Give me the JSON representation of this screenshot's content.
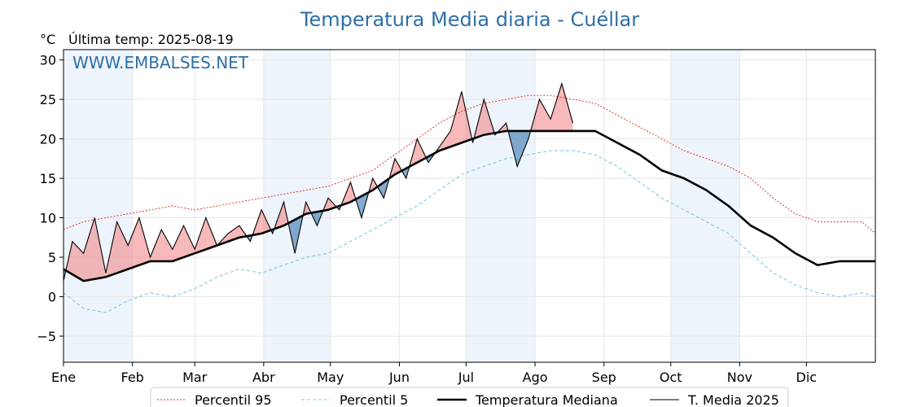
{
  "chart_data": {
    "type": "line",
    "title": "Temperatura Media diaria - Cuéllar",
    "unit_label": "°C",
    "subtitle": "Última temp: 2025-08-19",
    "watermark": "WWW.EMBALSES.NET",
    "ylim": [
      -8.3,
      31.3
    ],
    "yticks": [
      -5,
      0,
      5,
      10,
      15,
      20,
      25,
      30
    ],
    "ytick_labels": [
      "−5",
      "0",
      "5",
      "10",
      "15",
      "20",
      "25",
      "30"
    ],
    "x_axis": "day of year (1 = 1 Jan)",
    "xlim": [
      1,
      366
    ],
    "months": [
      {
        "label": "Ene",
        "start_day": 1
      },
      {
        "label": "Feb",
        "start_day": 32
      },
      {
        "label": "Mar",
        "start_day": 60
      },
      {
        "label": "Abr",
        "start_day": 91
      },
      {
        "label": "May",
        "start_day": 121
      },
      {
        "label": "Jun",
        "start_day": 152
      },
      {
        "label": "Jul",
        "start_day": 182
      },
      {
        "label": "Ago",
        "start_day": 213
      },
      {
        "label": "Sep",
        "start_day": 244
      },
      {
        "label": "Oct",
        "start_day": 274
      },
      {
        "label": "Nov",
        "start_day": 305
      },
      {
        "label": "Dic",
        "start_day": 335
      }
    ],
    "shaded_months": [
      "Ene",
      "Abr",
      "Jul",
      "Oct"
    ],
    "grid": true,
    "legend_position": "bottom",
    "series": [
      {
        "name": "Percentil 95",
        "style": "dotted",
        "color": "#e02020",
        "x": [
          1,
          10,
          20,
          30,
          40,
          50,
          60,
          70,
          80,
          90,
          100,
          110,
          120,
          130,
          140,
          150,
          160,
          170,
          180,
          190,
          200,
          210,
          220,
          230,
          240,
          250,
          260,
          270,
          280,
          290,
          300,
          310,
          320,
          330,
          340,
          350,
          360,
          366
        ],
        "y": [
          8.5,
          9.5,
          10,
          10.5,
          11,
          11.5,
          11,
          11.5,
          12,
          12.5,
          13,
          13.5,
          14,
          15,
          16,
          18,
          20,
          22,
          23.5,
          24.5,
          25,
          25.5,
          25.5,
          25,
          24.5,
          23,
          21.5,
          20,
          18.5,
          17.5,
          16.5,
          15,
          12.5,
          10.5,
          9.5,
          9.5,
          9.5,
          8
        ]
      },
      {
        "name": "Percentil 5",
        "style": "dashed",
        "color": "#7ec8e3",
        "x": [
          1,
          10,
          20,
          30,
          40,
          50,
          60,
          70,
          80,
          90,
          100,
          110,
          120,
          130,
          140,
          150,
          160,
          170,
          180,
          190,
          200,
          210,
          220,
          230,
          240,
          250,
          260,
          270,
          280,
          290,
          300,
          310,
          320,
          330,
          340,
          350,
          360,
          366
        ],
        "y": [
          0.5,
          -1.5,
          -2,
          -0.5,
          0.5,
          0,
          1,
          2.5,
          3.5,
          3,
          4,
          5,
          5.5,
          7,
          8.5,
          10,
          11.5,
          13.5,
          15.5,
          16.5,
          17.5,
          18,
          18.5,
          18.5,
          18,
          16.5,
          14.5,
          12.5,
          11,
          9.5,
          8,
          5.5,
          3,
          1.5,
          0.5,
          0,
          0.5,
          0
        ]
      },
      {
        "name": "Temperatura Mediana",
        "style": "solid-thick",
        "color": "#000000",
        "x": [
          1,
          10,
          20,
          30,
          40,
          50,
          60,
          70,
          80,
          90,
          100,
          110,
          120,
          130,
          140,
          150,
          160,
          170,
          180,
          190,
          200,
          210,
          220,
          230,
          240,
          250,
          260,
          270,
          280,
          290,
          300,
          310,
          320,
          330,
          340,
          350,
          360,
          366
        ],
        "y": [
          3.5,
          2,
          2.5,
          3.5,
          4.5,
          4.5,
          5.5,
          6.5,
          7.5,
          8,
          9,
          10.5,
          11,
          12,
          13.5,
          15.5,
          17,
          18.5,
          19.5,
          20.5,
          21,
          21,
          21,
          21,
          21,
          19.5,
          18,
          16,
          15,
          13.5,
          11.5,
          9,
          7.5,
          5.5,
          4,
          4.5,
          4.5,
          4.5
        ]
      },
      {
        "name": "T. Media 2025",
        "style": "solid-thin",
        "color": "#000000",
        "x": [
          1,
          5,
          10,
          15,
          20,
          25,
          30,
          35,
          40,
          45,
          50,
          55,
          60,
          65,
          70,
          75,
          80,
          85,
          90,
          95,
          100,
          105,
          110,
          115,
          120,
          125,
          130,
          135,
          140,
          145,
          150,
          155,
          160,
          165,
          170,
          175,
          180,
          185,
          190,
          195,
          200,
          205,
          210,
          215,
          220,
          225,
          230
        ],
        "y": [
          2,
          7,
          5.5,
          10,
          3,
          9.5,
          6.5,
          10,
          5,
          8.5,
          6,
          9,
          6,
          10,
          6.5,
          8,
          9,
          7,
          11,
          8,
          12,
          5.5,
          12,
          9,
          12.5,
          11,
          14.5,
          10,
          15,
          12.5,
          17.5,
          15,
          20,
          17,
          19,
          21,
          26,
          19.5,
          25,
          20.5,
          22,
          16.5,
          20,
          25,
          22.5,
          27,
          22
        ]
      }
    ],
    "fill_above_color": "#f08080",
    "fill_below_color": "#5b8fbf"
  }
}
